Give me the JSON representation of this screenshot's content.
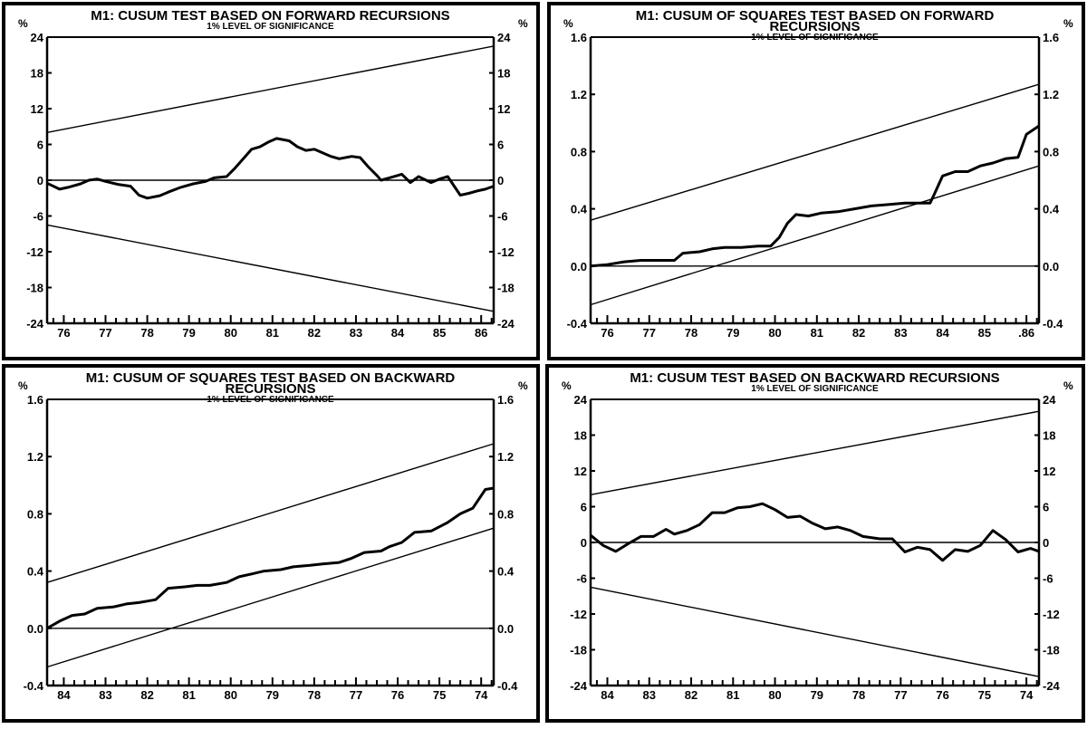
{
  "chart_data": [
    {
      "type": "line",
      "title": "M1: CUSUM TEST BASED ON FORWARD RECURSIONS",
      "title_lines": [
        "M1: CUSUM TEST BASED ON FORWARD RECURSIONS"
      ],
      "subtitle": "1% LEVEL OF SIGNIFICANCE",
      "unit_label": "%",
      "xlabel": "",
      "ylabel": "",
      "ylim": [
        -24,
        24
      ],
      "yticks": [
        "24",
        "18",
        "12",
        "6",
        "0",
        "-6",
        "-12",
        "-18",
        "-24"
      ],
      "ytick_values": [
        24,
        18,
        12,
        6,
        0,
        -6,
        -12,
        -18,
        -24
      ],
      "xlim": [
        75.6,
        86.3
      ],
      "xticks": [
        "76",
        "77",
        "78",
        "79",
        "80",
        "81",
        "82",
        "83",
        "84",
        "85",
        "86"
      ],
      "xtick_values": [
        76,
        77,
        78,
        79,
        80,
        81,
        82,
        83,
        84,
        85,
        86
      ],
      "grid": false,
      "series": [
        {
          "role": "statistic",
          "x": [
            75.6,
            75.9,
            76.1,
            76.4,
            76.6,
            76.8,
            77.0,
            77.3,
            77.6,
            77.8,
            78.0,
            78.3,
            78.5,
            78.8,
            79.1,
            79.4,
            79.6,
            79.9,
            80.1,
            80.3,
            80.5,
            80.7,
            80.9,
            81.1,
            81.4,
            81.6,
            81.8,
            82.0,
            82.2,
            82.4,
            82.6,
            82.9,
            83.1,
            83.3,
            83.5,
            83.6,
            83.8,
            84.1,
            84.3,
            84.5,
            84.8,
            85.0,
            85.2,
            85.5,
            85.7,
            85.9,
            86.1,
            86.3
          ],
          "y": [
            -0.5,
            -1.5,
            -1.2,
            -0.6,
            0,
            0.2,
            -0.2,
            -0.7,
            -1.0,
            -2.5,
            -3.0,
            -2.6,
            -2.0,
            -1.2,
            -0.6,
            -0.2,
            0.4,
            0.6,
            2.0,
            3.6,
            5.2,
            5.6,
            6.4,
            7.0,
            6.6,
            5.6,
            5.0,
            5.2,
            4.6,
            4.0,
            3.6,
            4.0,
            3.8,
            2.2,
            0.8,
            0.0,
            0.4,
            1.0,
            -0.4,
            0.6,
            -0.4,
            0.2,
            0.6,
            -2.5,
            -2.2,
            -1.8,
            -1.5,
            -1.0
          ]
        },
        {
          "role": "upper bound",
          "x": [
            75.6,
            86.3
          ],
          "y": [
            8,
            22.5
          ]
        },
        {
          "role": "lower bound",
          "x": [
            75.6,
            86.3
          ],
          "y": [
            -7.5,
            -22
          ]
        },
        {
          "role": "zero line",
          "x": [
            75.6,
            86.3
          ],
          "y": [
            0,
            0
          ]
        }
      ]
    },
    {
      "type": "line",
      "title": "M1: CUSUM OF SQUARES TEST BASED ON FORWARD RECURSIONS",
      "title_lines": [
        "M1: CUSUM OF SQUARES TEST BASED ON FORWARD",
        "RECURSIONS"
      ],
      "subtitle": "1% LEVEL OF SIGNIFICANCE",
      "unit_label": "%",
      "xlabel": "",
      "ylabel": "",
      "ylim": [
        -0.4,
        1.6
      ],
      "yticks": [
        "1.6",
        "1.2",
        "0.8",
        "0.4",
        "0.0",
        "-0.4"
      ],
      "ytick_values": [
        1.6,
        1.2,
        0.8,
        0.4,
        0.0,
        -0.4
      ],
      "xlim": [
        75.6,
        86.3
      ],
      "xticks": [
        "76",
        "77",
        "78",
        "79",
        "80",
        "81",
        "82",
        "83",
        "84",
        "85",
        ".86"
      ],
      "xtick_values": [
        76,
        77,
        78,
        79,
        80,
        81,
        82,
        83,
        84,
        85,
        86
      ],
      "grid": false,
      "series": [
        {
          "role": "statistic",
          "x": [
            75.6,
            76.0,
            76.4,
            76.8,
            77.2,
            77.6,
            77.8,
            78.2,
            78.5,
            78.8,
            79.2,
            79.6,
            79.9,
            80.1,
            80.3,
            80.5,
            80.8,
            81.1,
            81.5,
            81.9,
            82.3,
            82.7,
            83.1,
            83.5,
            83.7,
            83.8,
            84.0,
            84.3,
            84.6,
            84.9,
            85.2,
            85.5,
            85.8,
            86.0,
            86.3
          ],
          "y": [
            0.0,
            0.01,
            0.03,
            0.04,
            0.04,
            0.04,
            0.09,
            0.1,
            0.12,
            0.13,
            0.13,
            0.14,
            0.14,
            0.2,
            0.3,
            0.36,
            0.35,
            0.37,
            0.38,
            0.4,
            0.42,
            0.43,
            0.44,
            0.44,
            0.44,
            0.5,
            0.63,
            0.66,
            0.66,
            0.7,
            0.72,
            0.75,
            0.76,
            0.92,
            0.98
          ]
        },
        {
          "role": "upper bound",
          "x": [
            75.6,
            86.3
          ],
          "y": [
            0.32,
            1.27
          ]
        },
        {
          "role": "lower bound",
          "x": [
            75.6,
            86.3
          ],
          "y": [
            -0.27,
            0.7
          ]
        },
        {
          "role": "zero line",
          "x": [
            75.6,
            86.3
          ],
          "y": [
            0,
            0
          ]
        }
      ]
    },
    {
      "type": "line",
      "title": "M1: CUSUM OF SQUARES TEST BASED ON BACKWARD RECURSIONS",
      "title_lines": [
        "M1: CUSUM OF SQUARES TEST BASED ON BACKWARD",
        "RECURSIONS"
      ],
      "subtitle": "1% LEVEL OF SIGNIFICANCE",
      "unit_label": "%",
      "xlabel": "",
      "ylabel": "",
      "ylim": [
        -0.4,
        1.6
      ],
      "yticks": [
        "1.6",
        "1.2",
        "0.8",
        "0.4",
        "0.0",
        "-0.4"
      ],
      "ytick_values": [
        1.6,
        1.2,
        0.8,
        0.4,
        0.0,
        -0.4
      ],
      "xlim": [
        84.4,
        73.7
      ],
      "xticks": [
        "84",
        "83",
        "82",
        "81",
        "80",
        "79",
        "78",
        "77",
        "76",
        "75",
        "74"
      ],
      "xtick_values": [
        84,
        83,
        82,
        81,
        80,
        79,
        78,
        77,
        76,
        75,
        74
      ],
      "grid": false,
      "series": [
        {
          "role": "statistic",
          "x": [
            84.4,
            84.1,
            83.8,
            83.5,
            83.2,
            82.8,
            82.5,
            82.2,
            82.0,
            81.8,
            81.5,
            81.1,
            80.8,
            80.5,
            80.1,
            79.8,
            79.5,
            79.2,
            78.8,
            78.5,
            78.1,
            77.8,
            77.4,
            77.1,
            76.8,
            76.4,
            76.2,
            75.9,
            75.6,
            75.2,
            74.8,
            74.5,
            74.2,
            73.9,
            73.7
          ],
          "y": [
            0.0,
            0.05,
            0.09,
            0.1,
            0.14,
            0.15,
            0.17,
            0.18,
            0.19,
            0.2,
            0.28,
            0.29,
            0.3,
            0.3,
            0.32,
            0.36,
            0.38,
            0.4,
            0.41,
            0.43,
            0.44,
            0.45,
            0.46,
            0.49,
            0.53,
            0.54,
            0.57,
            0.6,
            0.67,
            0.68,
            0.74,
            0.8,
            0.84,
            0.97,
            0.98
          ]
        },
        {
          "role": "upper bound",
          "x": [
            84.4,
            73.7
          ],
          "y": [
            0.32,
            1.29
          ]
        },
        {
          "role": "lower bound",
          "x": [
            84.4,
            73.7
          ],
          "y": [
            -0.27,
            0.7
          ]
        },
        {
          "role": "zero line",
          "x": [
            84.4,
            73.7
          ],
          "y": [
            0,
            0
          ]
        }
      ]
    },
    {
      "type": "line",
      "title": "M1: CUSUM TEST BASED ON BACKWARD RECURSIONS",
      "title_lines": [
        "M1: CUSUM TEST BASED ON BACKWARD RECURSIONS"
      ],
      "subtitle": "1% LEVEL OF SIGNIFICANCE",
      "unit_label": "%",
      "xlabel": "",
      "ylabel": "",
      "ylim": [
        -24,
        24
      ],
      "yticks": [
        "24",
        "18",
        "12",
        "6",
        "0",
        "-6",
        "-12",
        "-18",
        "-24"
      ],
      "ytick_values": [
        24,
        18,
        12,
        6,
        0,
        -6,
        -12,
        -18,
        -24
      ],
      "xlim": [
        84.4,
        73.7
      ],
      "xticks": [
        "84",
        "83",
        "82",
        "81",
        "80",
        "79",
        "78",
        "77",
        "76",
        "75",
        "74"
      ],
      "xtick_values": [
        84,
        83,
        82,
        81,
        80,
        79,
        78,
        77,
        76,
        75,
        74
      ],
      "grid": false,
      "series": [
        {
          "role": "statistic",
          "x": [
            84.4,
            84.1,
            83.8,
            83.5,
            83.2,
            82.9,
            82.6,
            82.4,
            82.1,
            81.8,
            81.5,
            81.2,
            80.9,
            80.6,
            80.3,
            80.0,
            79.7,
            79.4,
            79.1,
            78.8,
            78.5,
            78.2,
            77.9,
            77.5,
            77.2,
            76.9,
            76.6,
            76.3,
            76.0,
            75.7,
            75.4,
            75.1,
            74.8,
            74.5,
            74.2,
            73.9,
            73.7
          ],
          "y": [
            1.2,
            -0.5,
            -1.5,
            -0.2,
            1.0,
            1.0,
            2.2,
            1.4,
            2.0,
            3.0,
            5.0,
            5.0,
            5.8,
            6.0,
            6.5,
            5.5,
            4.2,
            4.4,
            3.2,
            2.3,
            2.6,
            2.0,
            1.0,
            0.6,
            0.6,
            -1.6,
            -0.8,
            -1.2,
            -3.0,
            -1.2,
            -1.5,
            -0.5,
            2.0,
            0.5,
            -1.6,
            -1.0,
            -1.5
          ]
        },
        {
          "role": "upper bound",
          "x": [
            84.4,
            73.7
          ],
          "y": [
            8,
            22
          ]
        },
        {
          "role": "lower bound",
          "x": [
            84.4,
            73.7
          ],
          "y": [
            -7.5,
            -22.5
          ]
        },
        {
          "role": "zero line",
          "x": [
            84.4,
            73.7
          ],
          "y": [
            0,
            0
          ]
        }
      ]
    }
  ]
}
